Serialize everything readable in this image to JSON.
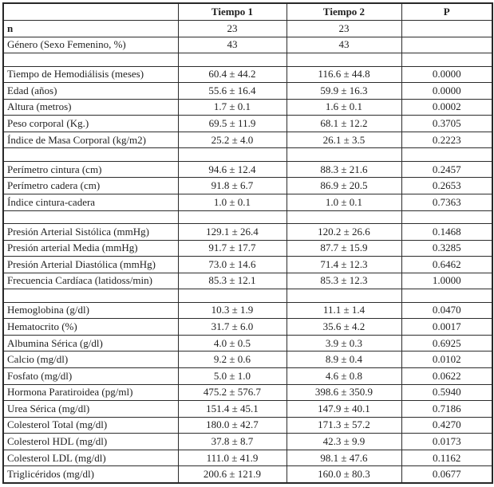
{
  "table": {
    "columns": [
      "",
      "Tiempo 1",
      "Tiempo 2",
      "P"
    ],
    "rows": [
      {
        "label": "n",
        "bold": true,
        "t1": "23",
        "t2": "23",
        "p": ""
      },
      {
        "label": "Género (Sexo Femenino, %)",
        "t1": "43",
        "t2": "43",
        "p": ""
      },
      {
        "blank": true
      },
      {
        "label": "Tiempo de Hemodiálisis (meses)",
        "t1": "60.4 ± 44.2",
        "t2": "116.6 ± 44.8",
        "p": "0.0000"
      },
      {
        "label": "Edad (años)",
        "t1": "55.6 ± 16.4",
        "t2": "59.9 ± 16.3",
        "p": "0.0000"
      },
      {
        "label": "Altura (metros)",
        "t1": "1.7 ± 0.1",
        "t2": "1.6 ± 0.1",
        "p": "0.0002"
      },
      {
        "label": "Peso corporal (Kg.)",
        "t1": "69.5 ± 11.9",
        "t2": "68.1 ± 12.2",
        "p": "0.3705"
      },
      {
        "label": "Índice de Masa Corporal (kg/m2)",
        "t1": "25.2 ± 4.0",
        "t2": "26.1 ± 3.5",
        "p": "0.2223"
      },
      {
        "blank": true
      },
      {
        "label": "Perímetro cintura (cm)",
        "t1": "94.6 ± 12.4",
        "t2": "88.3 ± 21.6",
        "p": "0.2457"
      },
      {
        "label": "Perímetro cadera (cm)",
        "t1": "91.8 ± 6.7",
        "t2": "86.9 ± 20.5",
        "p": "0.2653"
      },
      {
        "label": "Índice cintura-cadera",
        "t1": "1.0 ± 0.1",
        "t2": "1.0 ± 0.1",
        "p": "0.7363"
      },
      {
        "blank": true
      },
      {
        "label": "Presión Arterial Sistólica (mmHg)",
        "t1": "129.1 ± 26.4",
        "t2": "120.2 ± 26.6",
        "p": "0.1468"
      },
      {
        "label": "Presión arterial Media (mmHg)",
        "t1": "91.7 ± 17.7",
        "t2": "87.7 ± 15.9",
        "p": "0.3285"
      },
      {
        "label": "Presión Arterial Diastólica (mmHg)",
        "t1": "73.0 ± 14.6",
        "t2": "71.4 ± 12.3",
        "p": "0.6462"
      },
      {
        "label": "Frecuencia Cardíaca (latidoss/min)",
        "t1": "85.3 ± 12.1",
        "t2": "85.3 ± 12.3",
        "p": "1.0000"
      },
      {
        "blank": true
      },
      {
        "label": "Hemoglobina (g/dl)",
        "t1": "10.3 ± 1.9",
        "t2": "11.1 ± 1.4",
        "p": "0.0470"
      },
      {
        "label": "Hematocrito (%)",
        "t1": "31.7 ± 6.0",
        "t2": "35.6 ± 4.2",
        "p": "0.0017"
      },
      {
        "label": "Albumina Sérica (g/dl)",
        "t1": "4.0 ± 0.5",
        "t2": "3.9 ± 0.3",
        "p": "0.6925"
      },
      {
        "label": "Calcio (mg/dl)",
        "t1": "9.2 ± 0.6",
        "t2": "8.9 ± 0.4",
        "p": "0.0102"
      },
      {
        "label": "Fosfato (mg/dl)",
        "t1": "5.0 ± 1.0",
        "t2": "4.6 ± 0.8",
        "p": "0.0622"
      },
      {
        "label": "Hormona Paratiroidea (pg/ml)",
        "t1": "475.2 ± 576.7",
        "t2": "398.6 ± 350.9",
        "p": "0.5940"
      },
      {
        "label": "Urea Sérica (mg/dl)",
        "t1": "151.4 ± 45.1",
        "t2": "147.9 ± 40.1",
        "p": "0.7186"
      },
      {
        "label": "Colesterol Total (mg/dl)",
        "t1": "180.0 ± 42.7",
        "t2": "171.3 ± 57.2",
        "p": "0.4270"
      },
      {
        "label": "Colesterol HDL (mg/dl)",
        "t1": "37.8 ± 8.7",
        "t2": "42.3 ± 9.9",
        "p": "0.0173"
      },
      {
        "label": "Colesterol LDL (mg/dl)",
        "t1": "111.0 ± 41.9",
        "t2": "98.1 ± 47.6",
        "p": "0.1162"
      },
      {
        "label": "Triglicéridos (mg/dl)",
        "t1": "200.6 ± 121.9",
        "t2": "160.0 ± 80.3",
        "p": "0.0677"
      }
    ]
  }
}
